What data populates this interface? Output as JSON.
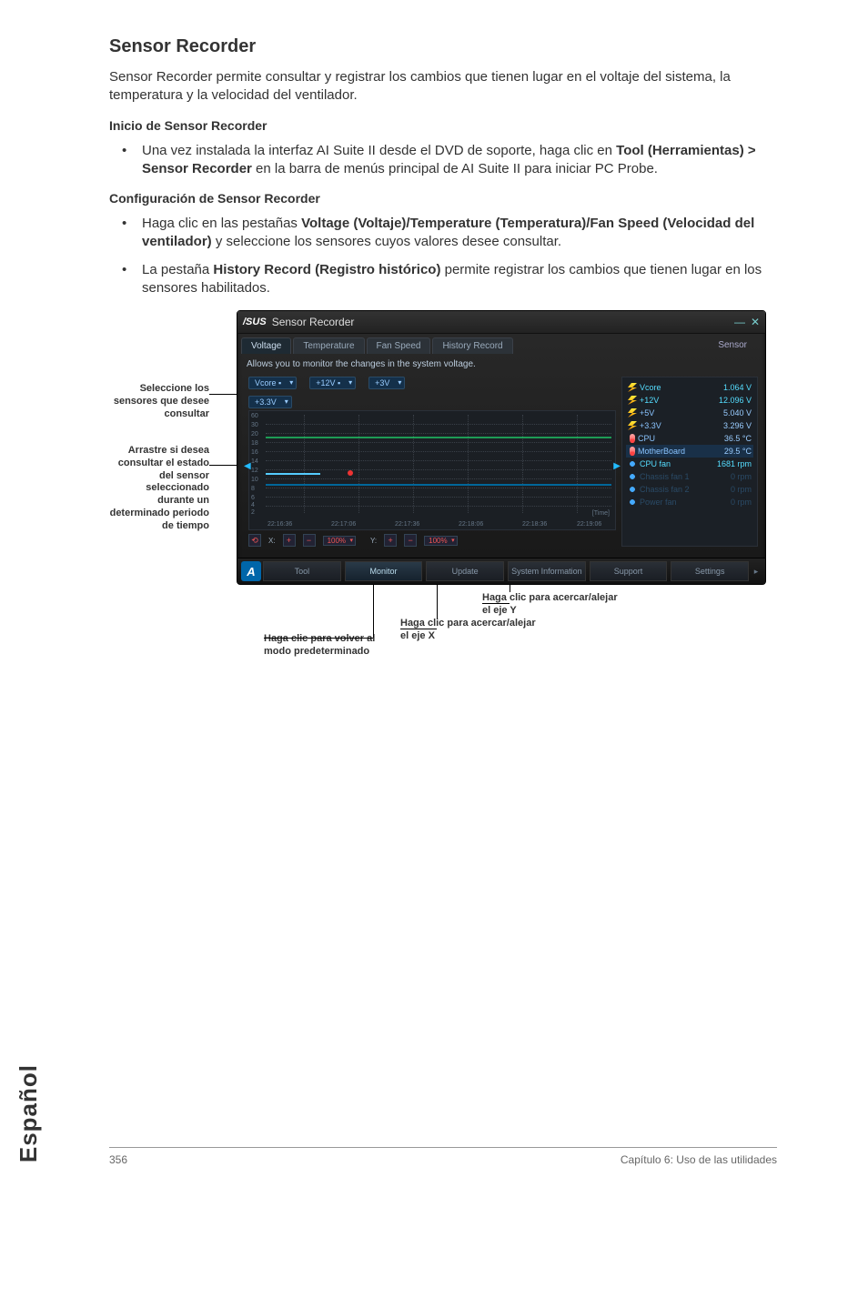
{
  "page": {
    "section_title": "Sensor Recorder",
    "intro": "Sensor Recorder permite consultar y registrar los cambios que tienen lugar en el voltaje del sistema, la temperatura y la velocidad del ventilador.",
    "sub1": "Inicio de Sensor Recorder",
    "bullet1_pre": "Una vez instalada la interfaz AI Suite II desde el DVD de soporte, haga clic en ",
    "bullet1_bold": "Tool (Herramientas) > Sensor Recorder",
    "bullet1_post": " en la barra de menús principal de AI Suite II para iniciar PC Probe.",
    "sub2": "Configuración de Sensor Recorder",
    "bullet2a_pre": "Haga clic en las pestañas ",
    "bullet2a_bold": "Voltage (Voltaje)/Temperature (Temperatura)/Fan Speed (Velocidad del ventilador)",
    "bullet2a_post": " y seleccione los sensores cuyos valores desee consultar.",
    "bullet2b_pre": "La pestaña ",
    "bullet2b_bold": "History Record (Registro histórico)",
    "bullet2b_post": " permite registrar los cambios que tienen lugar en los sensores habilitados."
  },
  "labels": {
    "left1": "Seleccione los sensores que desee consultar",
    "left2": "Arrastre si desea consultar el estado del sensor seleccionado durante un determinado periodo de tiempo",
    "bot1": "Haga clic para volver al modo predeterminado",
    "bot2": "Haga clic para acercar/alejar el eje X",
    "bot3": "Haga clic para acercar/alejar el eje Y"
  },
  "window": {
    "brand": "/SUS",
    "title": "Sensor Recorder",
    "min": "—",
    "close": "✕",
    "tabs": {
      "voltage": "Voltage",
      "temperature": "Temperature",
      "fanspeed": "Fan Speed",
      "history": "History Record"
    },
    "panel_label": "Sensor",
    "desc": "Allows you to monitor the changes in the system voltage.",
    "dd_vcore": "Vcore ▪",
    "dd_12v": "+12V ▪",
    "dd_3v": "+3V",
    "dd_33v": "+3.3V",
    "zoom_y": "100%",
    "zoom_x": "100%",
    "time_label": "[Time]",
    "yticks": [
      "60",
      "30",
      "20",
      "18",
      "16",
      "14",
      "12",
      "10",
      "8",
      "6",
      "4",
      "2",
      "0"
    ],
    "xticks": [
      "22:16:36",
      "22:17:06",
      "22:17:36",
      "22:18:06",
      "22:18:36",
      "22:19:06"
    ],
    "sensors": [
      {
        "name": "Vcore",
        "val": "1.064 V",
        "cls": "hi",
        "icon": "bolt"
      },
      {
        "name": "+12V",
        "val": "12.096 V",
        "cls": "hi",
        "icon": "bolt"
      },
      {
        "name": "+5V",
        "val": "5.040 V",
        "cls": "",
        "icon": "bolt"
      },
      {
        "name": "+3.3V",
        "val": "3.296 V",
        "cls": "",
        "icon": "bolt"
      },
      {
        "name": "CPU",
        "val": "36.5 °C",
        "cls": "",
        "icon": "temp"
      },
      {
        "name": "MotherBoard",
        "val": "29.5 °C",
        "cls": "sel",
        "icon": "temp"
      },
      {
        "name": "CPU fan",
        "val": "1681 rpm",
        "cls": "hi",
        "icon": "fan"
      },
      {
        "name": "Chassis fan 1",
        "val": "0 rpm",
        "cls": "dim",
        "icon": "fan"
      },
      {
        "name": "Chassis fan 2",
        "val": "0 rpm",
        "cls": "dim",
        "icon": "fan"
      },
      {
        "name": "Power fan",
        "val": "0 rpm",
        "cls": "dim",
        "icon": "fan"
      }
    ],
    "bottom": {
      "logo": "A",
      "btns": [
        "Tool",
        "Monitor",
        "Update",
        "System Information",
        "Support",
        "Settings"
      ],
      "next": "▸"
    }
  },
  "sidebar_lang": "Español",
  "footer": {
    "pgnum": "356",
    "chapter": "Capítulo 6: Uso de las utilidades"
  }
}
